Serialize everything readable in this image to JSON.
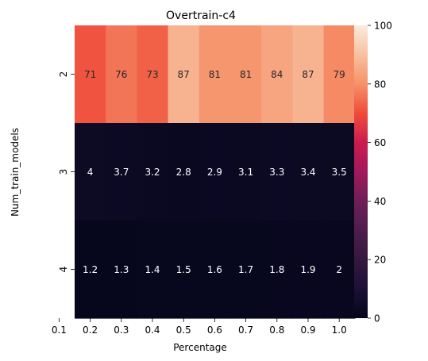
{
  "chart_data": {
    "type": "heatmap",
    "title": "Overtrain-c4",
    "xlabel": "Percentage",
    "ylabel": "Num_train_models",
    "x_tick_labels": [
      "0.1",
      "0.2",
      "0.3",
      "0.4",
      "0.5",
      "0.6",
      "0.7",
      "0.8",
      "0.9",
      "1.0"
    ],
    "columns": [
      "0.2",
      "0.3",
      "0.4",
      "0.5",
      "0.6",
      "0.7",
      "0.8",
      "0.9",
      "1.0"
    ],
    "rows": [
      "2",
      "3",
      "4"
    ],
    "values": [
      [
        71,
        76,
        73,
        87,
        81,
        81,
        84,
        87,
        79
      ],
      [
        4,
        3.7,
        3.2,
        2.8,
        2.9,
        3.1,
        3.3,
        3.4,
        3.5
      ],
      [
        1.2,
        1.3,
        1.4,
        1.5,
        1.6,
        1.7,
        1.8,
        1.9,
        2
      ]
    ],
    "colorbar": {
      "colormap": "rocket",
      "range": [
        0,
        100
      ],
      "ticks": [
        "0",
        "20",
        "40",
        "60",
        "80",
        "100"
      ]
    }
  }
}
